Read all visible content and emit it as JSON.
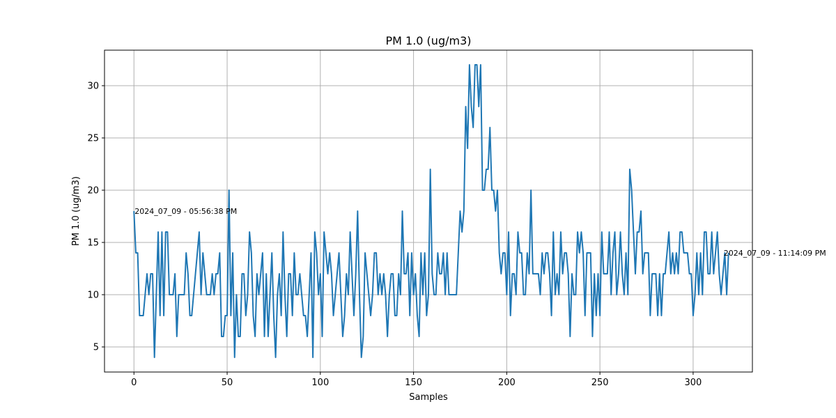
{
  "chart_data": {
    "type": "line",
    "title": "PM 1.0 (ug/m3)",
    "xlabel": "Samples",
    "ylabel": "PM 1.0 (ug/m3)",
    "xlim": [
      -15.8,
      331.8
    ],
    "ylim": [
      2.6,
      33.4
    ],
    "xticks": [
      0,
      50,
      100,
      150,
      200,
      250,
      300
    ],
    "yticks": [
      5,
      10,
      15,
      20,
      25,
      30
    ],
    "grid": true,
    "line_color": "#1f77b4",
    "series": [
      {
        "values": [
          18,
          14,
          14,
          8,
          8,
          8,
          10,
          12,
          10,
          12,
          12,
          4,
          10,
          16,
          8,
          16,
          8,
          16,
          16,
          10,
          10,
          10,
          12,
          6,
          10,
          10,
          10,
          10,
          14,
          12,
          8,
          8,
          10,
          12,
          14,
          16,
          10,
          14,
          12,
          10,
          10,
          10,
          12,
          10,
          12,
          12,
          14,
          6,
          6,
          8,
          8,
          20,
          8,
          14,
          4,
          10,
          6,
          6,
          12,
          12,
          8,
          10,
          16,
          14,
          8,
          6,
          12,
          10,
          12,
          14,
          6,
          12,
          6,
          10,
          14,
          8,
          4,
          10,
          12,
          8,
          16,
          10,
          6,
          12,
          12,
          8,
          14,
          10,
          10,
          12,
          10,
          8,
          8,
          6,
          10,
          14,
          4,
          16,
          14,
          10,
          12,
          6,
          16,
          14,
          12,
          14,
          12,
          8,
          10,
          12,
          14,
          10,
          6,
          8,
          12,
          10,
          16,
          12,
          8,
          12,
          18,
          10,
          4,
          6,
          14,
          12,
          10,
          8,
          10,
          14,
          14,
          10,
          12,
          10,
          12,
          10,
          6,
          10,
          12,
          12,
          8,
          8,
          12,
          10,
          18,
          12,
          12,
          14,
          8,
          14,
          10,
          12,
          8,
          6,
          14,
          10,
          14,
          8,
          10,
          22,
          12,
          10,
          10,
          14,
          12,
          12,
          14,
          10,
          14,
          10,
          10,
          10,
          10,
          10,
          14,
          18,
          16,
          18,
          28,
          24,
          32,
          28,
          26,
          32,
          32,
          28,
          32,
          20,
          20,
          22,
          22,
          26,
          20,
          20,
          18,
          20,
          14,
          12,
          14,
          14,
          10,
          16,
          8,
          12,
          12,
          10,
          16,
          14,
          14,
          10,
          10,
          14,
          12,
          20,
          12,
          12,
          12,
          12,
          10,
          14,
          12,
          14,
          14,
          12,
          8,
          16,
          10,
          12,
          10,
          16,
          12,
          14,
          14,
          12,
          6,
          12,
          10,
          10,
          16,
          14,
          16,
          14,
          8,
          14,
          14,
          14,
          6,
          12,
          8,
          12,
          8,
          16,
          12,
          12,
          12,
          16,
          10,
          14,
          16,
          10,
          12,
          16,
          12,
          10,
          14,
          10,
          22,
          20,
          16,
          12,
          16,
          16,
          18,
          12,
          14,
          14,
          14,
          8,
          12,
          12,
          12,
          8,
          12,
          8,
          12,
          12,
          14,
          16,
          12,
          14,
          12,
          14,
          12,
          16,
          16,
          14,
          14,
          14,
          12,
          12,
          8,
          10,
          14,
          10,
          14,
          10,
          16,
          16,
          12,
          12,
          16,
          12,
          14,
          16,
          12,
          10,
          12,
          14,
          10,
          14
        ]
      }
    ],
    "annotations": [
      {
        "text": "2024_07_09 - 05:56:38 PM",
        "x": 0,
        "y": 18
      },
      {
        "text": "2024_07_09 - 11:14:09 PM",
        "x": 316,
        "y": 14
      }
    ]
  }
}
